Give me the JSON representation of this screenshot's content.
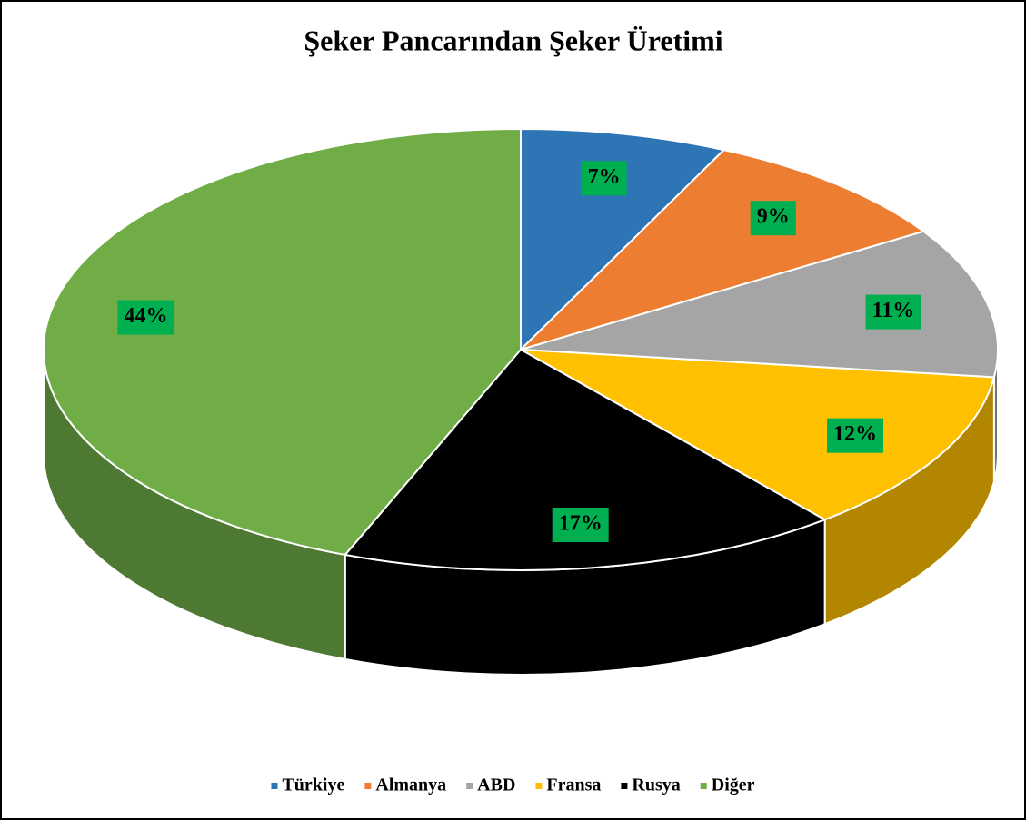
{
  "chart_data": {
    "type": "pie",
    "title": "Şeker Pancarından Şeker Üretimi",
    "categories": [
      "Türkiye",
      "Almanya",
      "ABD",
      "Fransa",
      "Rusya",
      "Diğer"
    ],
    "values": [
      7,
      9,
      11,
      12,
      17,
      44
    ],
    "value_labels": [
      "7%",
      "9%",
      "11%",
      "12%",
      "17%",
      "44%"
    ],
    "colors": [
      "#2e75b6",
      "#ed7d31",
      "#a5a5a5",
      "#ffc000",
      "#000000",
      "#70ad47"
    ],
    "legend": "bottom"
  }
}
